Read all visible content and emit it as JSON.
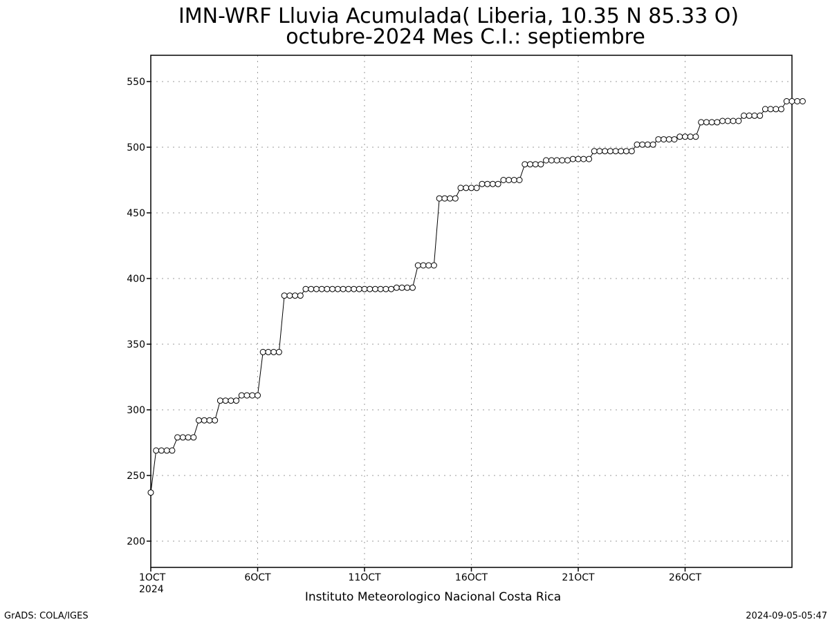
{
  "chart_data": {
    "type": "line",
    "title": "IMN-WRF  Lluvia Acumulada( Liberia, 10.35  N 85.33  O)",
    "subtitle": "octubre-2024 Mes C.I.: septiembre",
    "xlabel": "Instituto Meteorologico Nacional Costa Rica",
    "ylabel": "",
    "x_start": "2024-10-01T00:00",
    "x_step_hours": 6,
    "x_ticks": [
      {
        "label": "1OCT",
        "sublabel": "2024",
        "step": 0
      },
      {
        "label": "6OCT",
        "sublabel": "",
        "step": 20
      },
      {
        "label": "11OCT",
        "sublabel": "",
        "step": 40
      },
      {
        "label": "16OCT",
        "sublabel": "",
        "step": 60
      },
      {
        "label": "21OCT",
        "sublabel": "",
        "step": 80
      },
      {
        "label": "26OCT",
        "sublabel": "",
        "step": 100
      }
    ],
    "xlim_steps": [
      0,
      120
    ],
    "ylim": [
      180,
      570
    ],
    "y_ticks": [
      200,
      250,
      300,
      350,
      400,
      450,
      500,
      550
    ],
    "grid": true,
    "marker": "open-circle",
    "series": [
      {
        "name": "",
        "values": [
          237,
          269,
          269,
          269,
          269,
          279,
          279,
          279,
          279,
          292,
          292,
          292,
          292,
          307,
          307,
          307,
          307,
          311,
          311,
          311,
          311,
          344,
          344,
          344,
          344,
          387,
          387,
          387,
          387,
          392,
          392,
          392,
          392,
          392,
          392,
          392,
          392,
          392,
          392,
          392,
          392,
          392,
          392,
          392,
          392,
          392,
          393,
          393,
          393,
          393,
          410,
          410,
          410,
          410,
          461,
          461,
          461,
          461,
          469,
          469,
          469,
          469,
          472,
          472,
          472,
          472,
          475,
          475,
          475,
          475,
          487,
          487,
          487,
          487,
          490,
          490,
          490,
          490,
          490,
          491,
          491,
          491,
          491,
          497,
          497,
          497,
          497,
          497,
          497,
          497,
          497,
          502,
          502,
          502,
          502,
          506,
          506,
          506,
          506,
          508,
          508,
          508,
          508,
          519,
          519,
          519,
          519,
          520,
          520,
          520,
          520,
          524,
          524,
          524,
          524,
          529,
          529,
          529,
          529,
          535,
          535,
          535,
          535
        ]
      }
    ]
  },
  "footer": {
    "left": "GrADS: COLA/IGES",
    "right": "2024-09-05-05:47"
  }
}
